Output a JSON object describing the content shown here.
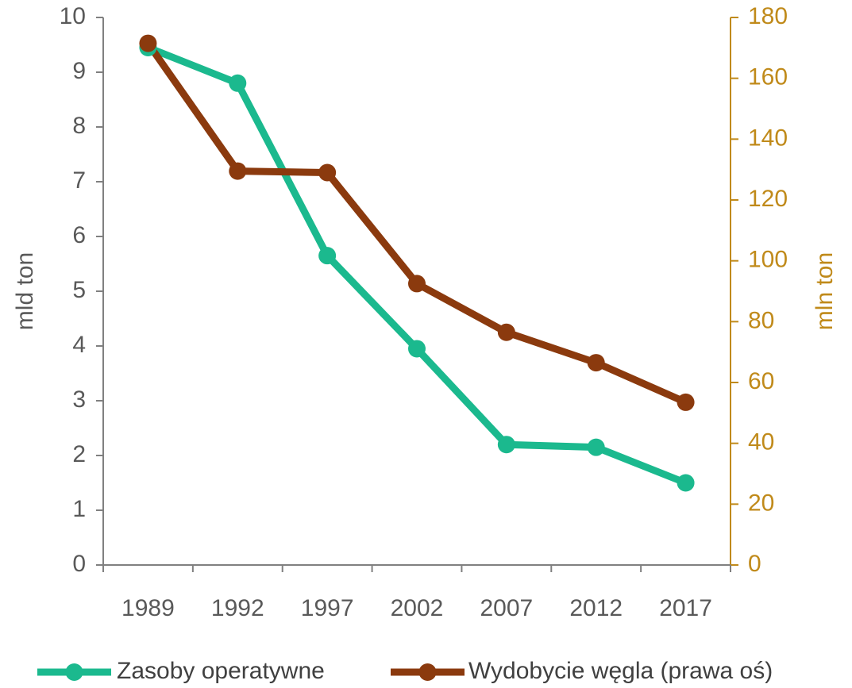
{
  "chart_data": {
    "type": "line",
    "categories": [
      "1989",
      "1992",
      "1997",
      "2002",
      "2007",
      "2012",
      "2017"
    ],
    "series": [
      {
        "name": "Zasoby operatywne",
        "axis": "left",
        "color": "#1BB98E",
        "values": [
          9.45,
          8.8,
          5.65,
          3.95,
          2.2,
          2.15,
          1.5
        ]
      },
      {
        "name": "Wydobycie węgla (prawa oś)",
        "axis": "right",
        "color": "#8B3A0E",
        "values": [
          171.5,
          129.5,
          129,
          92.5,
          76.5,
          66.5,
          53.5
        ]
      }
    ],
    "y_left": {
      "label": "mld ton",
      "range": [
        0,
        10
      ],
      "ticks": [
        "0",
        "1",
        "2",
        "3",
        "4",
        "5",
        "6",
        "7",
        "8",
        "9",
        "10"
      ],
      "color": "#595959"
    },
    "y_right": {
      "label": "mln ton",
      "range": [
        0,
        180
      ],
      "ticks": [
        "0",
        "20",
        "40",
        "60",
        "80",
        "100",
        "120",
        "140",
        "160",
        "180"
      ],
      "color": "#C08A1A"
    },
    "grid": false,
    "legend_position": "bottom"
  }
}
